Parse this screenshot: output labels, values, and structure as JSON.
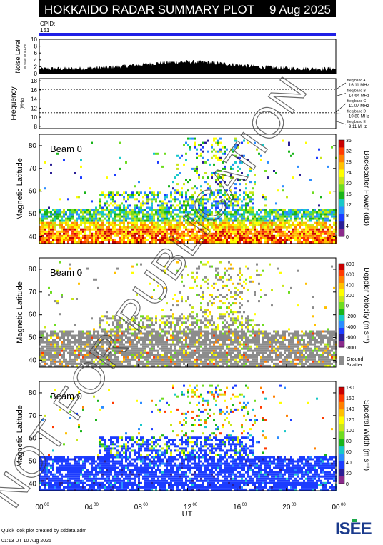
{
  "header": {
    "title": "HOKKAIDO RADAR SUMMARY PLOT",
    "date": "9 Aug 2025",
    "cpid_label": "CPID:",
    "cpid_value": "151"
  },
  "colors": {
    "header_bg": "#000000",
    "cpid_bar": "#1f1fe6",
    "ground_scatter": "#8c8c8c",
    "palette": [
      "#8b2a8b",
      "#2b1e95",
      "#1c3cff",
      "#2a8cff",
      "#18c8c8",
      "#19b419",
      "#6edc20",
      "#c8e61a",
      "#ffff00",
      "#ffc000",
      "#ff8000",
      "#ff3a00",
      "#c80000"
    ]
  },
  "noise_panel": {
    "ylabel": "Noise Level",
    "ylabel_small": "log scale (lin x 10^6)",
    "yticks": [
      "0",
      "2",
      "4",
      "6",
      "8",
      "10"
    ],
    "ylim": [
      0,
      10
    ]
  },
  "freq_panel": {
    "ylabel": "Frequency",
    "unit": "(MHz)",
    "yticks": [
      "8",
      "10",
      "12",
      "14",
      "16",
      "18"
    ],
    "ylim": [
      7.5,
      18.5
    ],
    "bands": [
      {
        "label": "freq band A",
        "value": "16.11 MHz",
        "mhz": 16.11
      },
      {
        "label": "freq band B",
        "value": "14.64 MHz",
        "mhz": 14.64
      },
      {
        "label": "freq band C",
        "value": "11.07 MHz",
        "mhz": 11.07
      },
      {
        "label": "freq band D",
        "value": "10.80 MHz",
        "mhz": 10.8
      },
      {
        "label": "freq band E",
        "value": "9.11 MHz",
        "mhz": 9.11
      }
    ]
  },
  "panels": [
    {
      "beam": "Beam 0",
      "ylabel": "Magnetic Latitude",
      "cbar_label": "Backscatter Power (dB)",
      "cbar_ticks": [
        "0",
        "4",
        "8",
        "12",
        "16",
        "20",
        "24",
        "28",
        "32",
        "36"
      ],
      "ground": false
    },
    {
      "beam": "Beam 0",
      "ylabel": "Magnetic Latitude",
      "cbar_label": "Doppler Velocity (m s⁻¹)",
      "cbar_ticks": [
        "-800",
        "-600",
        "-400",
        "-200",
        "0",
        "200",
        "400",
        "600",
        "800"
      ],
      "ground": true,
      "ground_label_1": "Ground",
      "ground_label_2": "Scatter"
    },
    {
      "beam": "Beam 0",
      "ylabel": "Magnetic Latitude",
      "cbar_label": "Spectral Width (m s⁻¹)",
      "cbar_ticks": [
        "0",
        "20",
        "40",
        "60",
        "80",
        "100",
        "120",
        "140",
        "160",
        "180"
      ],
      "ground": false
    }
  ],
  "lat_ticks": [
    "40",
    "50",
    "60",
    "70",
    "80"
  ],
  "x_axis": {
    "label": "UT",
    "ticks": [
      "00",
      "04",
      "08",
      "12",
      "16",
      "20",
      "00"
    ],
    "tick_sup": "00"
  },
  "footer": {
    "line1": "Quick look plot created by sddata adm",
    "line2": "01:13 UT 10 Aug 2025",
    "logo": "ISEE"
  },
  "watermark": "NOT FOR PUBLICATION",
  "chart_data": {
    "type": "heatmap",
    "title": "HOKKAIDO RADAR SUMMARY PLOT",
    "x": {
      "label": "UT",
      "ticks": [
        "00",
        "04",
        "08",
        "12",
        "16",
        "20",
        "00"
      ],
      "range_hours": [
        0,
        24
      ]
    },
    "y": {
      "label": "Magnetic Latitude",
      "ticks": [
        40,
        50,
        60,
        70,
        80
      ],
      "range": [
        37,
        85
      ]
    },
    "series": [
      {
        "name": "Backscatter Power (dB)",
        "range": [
          0,
          36
        ]
      },
      {
        "name": "Doppler Velocity (m s⁻¹)",
        "range": [
          -800,
          800
        ]
      },
      {
        "name": "Spectral Width (m s⁻¹)",
        "range": [
          0,
          180
        ]
      }
    ],
    "noise_level": {
      "ylim": [
        0,
        10
      ]
    },
    "frequency_bands_mhz": [
      16.11,
      14.64,
      11.07,
      10.8,
      9.11
    ]
  }
}
